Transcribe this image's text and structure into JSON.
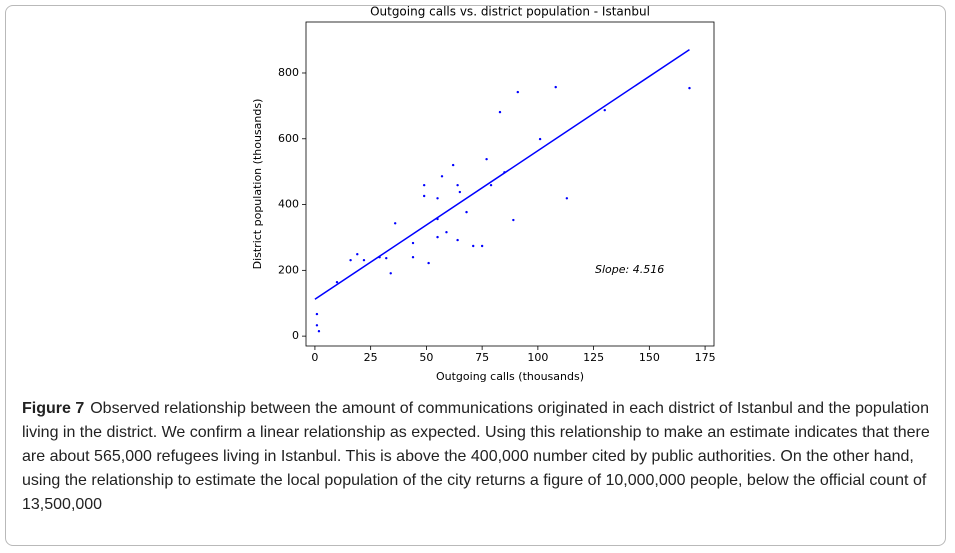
{
  "chart_data": {
    "type": "scatter",
    "title": "Outgoing calls vs. district population - Istanbul",
    "xlabel": "Outgoing calls (thousands)",
    "ylabel": "District population (thousands)",
    "annotation": "Slope: 4.516",
    "xlim": [
      -4,
      179
    ],
    "ylim": [
      -30,
      955
    ],
    "xticks": [
      0,
      25,
      50,
      75,
      100,
      125,
      150,
      175
    ],
    "yticks": [
      0,
      200,
      400,
      600,
      800
    ],
    "color": "#0000ff",
    "x": [
      0.9,
      0.9,
      1.8,
      9.9,
      16,
      19,
      22,
      29,
      32,
      34,
      36,
      44,
      44,
      49,
      49,
      51,
      55,
      55,
      55,
      57,
      59,
      62,
      64,
      65,
      64,
      68,
      71,
      75,
      77,
      79,
      83,
      85,
      89,
      91,
      101,
      108,
      113,
      130,
      168
    ],
    "y": [
      67,
      33,
      15,
      164,
      231,
      249,
      231,
      240,
      237,
      191,
      343,
      240,
      283,
      459,
      426,
      222,
      419,
      356,
      301,
      486,
      316,
      520,
      459,
      438,
      292,
      377,
      274,
      274,
      538,
      459,
      681,
      498,
      353,
      742,
      599,
      757,
      419,
      687,
      754
    ],
    "fit_line": {
      "x": [
        0,
        168
      ],
      "y": [
        112,
        871
      ],
      "color": "#0000ff"
    }
  },
  "caption": {
    "label": "Figure 7",
    "text": "Observed relationship between the amount of communications originated in each district of Istanbul and the population living in the district. We confirm a linear relationship as expected. Using this relationship to make an estimate indicates that there are about 565,000 refugees living in Istanbul. This is above the 400,000 number cited by public authorities. On the other hand, using the relationship to estimate the local population of the city returns a figure of 10,000,000 people, below the official count of 13,500,000"
  }
}
